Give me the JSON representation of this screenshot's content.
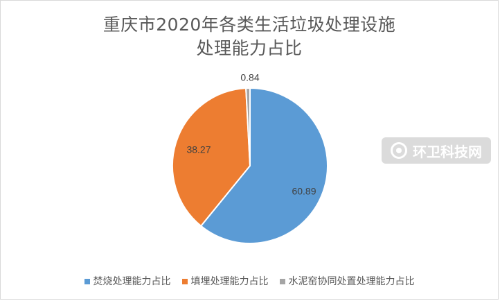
{
  "chart_data": {
    "type": "pie",
    "title": "重庆市2020年各类生活垃圾处理设施处理能力占比",
    "title_lines": [
      "重庆市2020年各类生活垃圾处理设施",
      "处理能力占比"
    ],
    "slices": [
      {
        "name": "焚烧处理能力占比",
        "value": 60.89,
        "label": "60.89",
        "color": "#5b9bd5"
      },
      {
        "name": "填埋处理能力占比",
        "value": 38.27,
        "label": "38.27",
        "color": "#ed7d31"
      },
      {
        "name": "水泥窑协同处置处理能力占比",
        "value": 0.84,
        "label": "0.84",
        "color": "#a5a5a5"
      }
    ],
    "legend_position": "bottom",
    "data_labels": "inside slices; smallest label outside"
  },
  "watermark": {
    "text": "环卫科技网",
    "icon": "leaf-drop-icon"
  }
}
